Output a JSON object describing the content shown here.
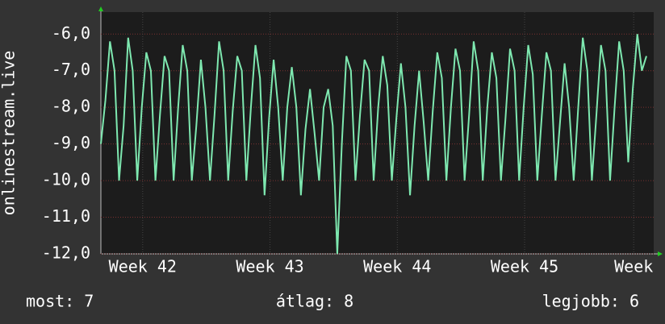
{
  "chart_data": {
    "type": "line",
    "y_label": "onlinestream.live",
    "x": [
      0,
      0.25,
      0.5,
      0.75,
      1,
      1.25,
      1.5,
      1.75,
      2,
      2.25,
      2.5,
      2.75,
      3,
      3.25,
      3.5,
      3.75,
      4,
      4.25,
      4.5,
      4.75,
      5,
      5.25,
      5.5,
      5.75,
      6,
      6.25,
      6.5,
      6.75,
      7,
      7.25,
      7.5,
      7.75,
      8,
      8.25,
      8.5,
      8.75,
      9,
      9.25,
      9.5,
      9.75,
      10,
      10.25,
      10.5,
      10.75,
      11,
      11.25,
      11.5,
      11.75,
      12,
      12.25,
      12.5,
      12.75,
      13,
      13.25,
      13.5,
      13.75,
      14,
      14.25,
      14.5,
      14.75,
      15,
      15.25,
      15.5,
      15.75,
      16,
      16.25,
      16.5,
      16.75,
      17,
      17.25,
      17.5,
      17.75,
      18,
      18.25,
      18.5,
      18.75,
      19,
      19.25,
      19.5,
      19.75,
      20,
      20.25,
      20.5,
      20.75,
      21,
      21.25,
      21.5,
      21.75,
      22,
      22.25,
      22.5,
      22.75,
      23,
      23.25,
      23.5,
      23.75,
      24,
      24.25,
      24.5,
      24.75,
      25,
      25.25,
      25.5,
      25.75,
      26,
      26.25,
      26.5,
      26.75,
      27,
      27.25,
      27.5,
      27.75,
      28,
      28.25,
      28.5,
      28.75,
      29,
      29.25,
      29.5,
      29.75,
      30
    ],
    "series": [
      {
        "name": "onlinestream.live",
        "color": "#7ee8b0",
        "values": [
          -9.0,
          -7.8,
          -6.2,
          -7.0,
          -10.0,
          -8.5,
          -6.1,
          -7.0,
          -10.0,
          -8.0,
          -6.5,
          -7.0,
          -10.0,
          -8.2,
          -6.6,
          -7.0,
          -10.0,
          -8.0,
          -6.3,
          -7.0,
          -10.0,
          -8.5,
          -6.7,
          -8.0,
          -10.0,
          -8.2,
          -6.2,
          -7.0,
          -10.0,
          -8.1,
          -6.6,
          -7.0,
          -10.0,
          -8.0,
          -6.3,
          -7.2,
          -10.4,
          -8.3,
          -6.7,
          -8.0,
          -10.0,
          -8.0,
          -6.9,
          -8.0,
          -10.4,
          -8.6,
          -7.5,
          -8.7,
          -10.0,
          -8.0,
          -7.5,
          -8.5,
          -12.0,
          -9.0,
          -6.6,
          -7.0,
          -10.0,
          -8.2,
          -6.7,
          -7.0,
          -10.0,
          -8.0,
          -6.6,
          -7.4,
          -10.0,
          -8.3,
          -6.8,
          -8.0,
          -10.4,
          -8.5,
          -7.0,
          -8.4,
          -10.0,
          -8.1,
          -6.5,
          -7.2,
          -10.0,
          -8.0,
          -6.4,
          -7.0,
          -10.0,
          -8.2,
          -6.2,
          -7.0,
          -10.0,
          -8.0,
          -6.5,
          -7.2,
          -10.0,
          -8.3,
          -6.4,
          -7.0,
          -10.0,
          -8.0,
          -6.3,
          -7.1,
          -10.0,
          -8.2,
          -6.5,
          -7.0,
          -10.0,
          -8.4,
          -6.8,
          -8.0,
          -10.0,
          -8.0,
          -6.1,
          -7.0,
          -10.0,
          -8.2,
          -6.3,
          -7.0,
          -10.0,
          -8.0,
          -6.2,
          -7.0,
          -9.5,
          -7.5,
          -6.0,
          -7.0,
          -6.6
        ]
      }
    ],
    "xlim": [
      0,
      30.4
    ],
    "xticks": [
      {
        "value": 2.3,
        "label": "Week 42"
      },
      {
        "value": 9.3,
        "label": "Week 43"
      },
      {
        "value": 16.3,
        "label": "Week 44"
      },
      {
        "value": 23.3,
        "label": "Week 45"
      },
      {
        "value": 29.3,
        "label": "Week"
      }
    ],
    "ylim": [
      -12,
      -5.4
    ],
    "yticks": [
      {
        "value": -12,
        "label": "-12,0"
      },
      {
        "value": -11,
        "label": "-11,0"
      },
      {
        "value": -10,
        "label": "-10,0"
      },
      {
        "value": -9,
        "label": "-9,0"
      },
      {
        "value": -8,
        "label": "-8,0"
      },
      {
        "value": -7,
        "label": "-7,0"
      },
      {
        "value": -6,
        "label": "-6,0"
      }
    ],
    "grid": true,
    "footer": [
      "most: 7",
      "átlag: 8",
      "legjobb: 6"
    ]
  }
}
